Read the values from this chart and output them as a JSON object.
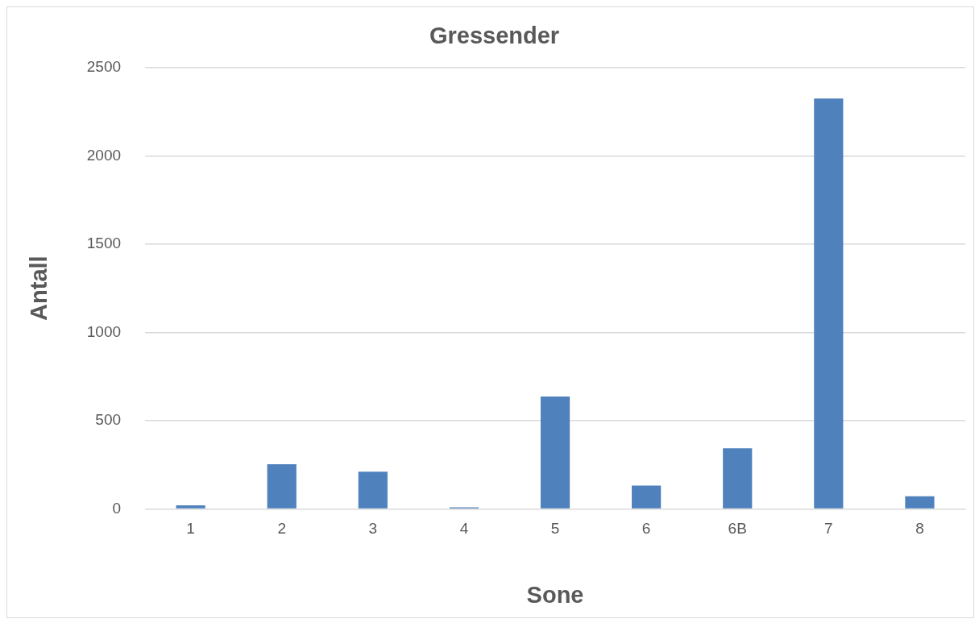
{
  "chart_data": {
    "type": "bar",
    "title": "Gressender",
    "xlabel": "Sone",
    "ylabel": "Antall",
    "categories": [
      "1",
      "2",
      "3",
      "4",
      "5",
      "6",
      "6B",
      "7",
      "8"
    ],
    "values": [
      20,
      253,
      211,
      9,
      636,
      132,
      343,
      2325,
      72
    ],
    "color": "#4f81bd",
    "ylim": [
      0,
      2500
    ],
    "yticks": [
      0,
      500,
      1000,
      1500,
      2000,
      2500
    ],
    "grid": "y",
    "legend": false
  }
}
